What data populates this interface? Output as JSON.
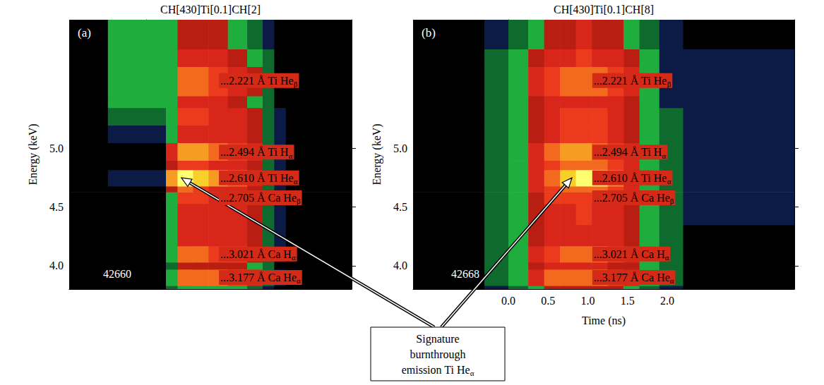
{
  "chart_data": [
    {
      "type": "heatmap",
      "title": "CH[430]Ti[0.1]CH[2]",
      "panel_label": "(a)",
      "shot": "42660",
      "y_label": "Energy (keV)",
      "xlim": [
        -1.0,
        2.65
      ],
      "xticks": [
        0,
        0.5,
        1,
        1.5,
        2
      ],
      "ylim": [
        3.8,
        6.1
      ],
      "yticks": [
        {
          "value": 4,
          "label": "4.0"
        },
        4.5,
        {
          "value": 5,
          "label": "5.0"
        }
      ],
      "tick_labels": "y",
      "x_bins": [
        -1.0,
        -0.5,
        0.25,
        0.4,
        0.6,
        0.8,
        1.05,
        1.3,
        1.5,
        1.65,
        1.8,
        2.65
      ],
      "y_bins": [
        3.8,
        3.83,
        3.97,
        4.03,
        4.17,
        4.35,
        4.53,
        4.63,
        4.68,
        4.82,
        4.9,
        5.05,
        5.2,
        5.35,
        5.45,
        5.7,
        5.85,
        6.1
      ],
      "cells": [
        [
          0,
          0,
          2,
          3,
          3,
          3,
          3,
          2,
          1,
          0,
          0
        ],
        [
          0,
          0,
          3,
          7,
          7,
          7,
          6,
          5,
          2,
          1,
          0
        ],
        [
          0,
          0,
          2,
          4,
          4,
          4,
          4,
          3,
          2,
          0,
          0
        ],
        [
          0,
          0,
          3,
          7,
          7,
          6,
          6,
          4,
          2,
          1,
          0
        ],
        [
          0,
          0,
          3,
          5,
          5,
          5,
          5,
          4,
          2,
          1,
          0
        ],
        [
          0,
          0,
          3,
          5,
          5,
          5,
          5,
          4,
          2,
          1,
          0
        ],
        [
          0,
          0,
          3,
          6,
          6,
          5,
          5,
          4,
          2,
          1,
          0
        ],
        [
          0,
          0,
          4,
          7,
          6,
          5,
          5,
          4,
          2,
          1,
          0
        ],
        [
          0,
          1,
          8,
          10,
          9,
          8,
          7,
          5,
          2,
          1,
          0
        ],
        [
          0,
          0,
          4,
          6,
          6,
          5,
          5,
          4,
          2,
          1,
          0
        ],
        [
          0,
          0,
          5,
          8,
          8,
          7,
          6,
          5,
          2,
          1,
          0
        ],
        [
          0,
          1,
          3,
          5,
          5,
          5,
          5,
          4,
          2,
          1,
          0
        ],
        [
          0,
          2,
          3,
          6,
          6,
          5,
          5,
          4,
          2,
          1,
          0
        ],
        [
          0,
          3,
          3,
          5,
          5,
          5,
          4,
          3,
          2,
          0,
          0
        ],
        [
          0,
          3,
          3,
          7,
          7,
          6,
          5,
          4,
          2,
          0,
          0
        ],
        [
          0,
          3,
          3,
          5,
          5,
          5,
          4,
          3,
          2,
          0,
          0
        ],
        [
          0,
          3,
          3,
          4,
          4,
          4,
          3,
          2,
          1,
          0,
          0
        ]
      ],
      "lines": [
        {
          "label": "...2.221 Å Ti Heβ",
          "y": 5.58
        },
        {
          "label": "...2.494 Å Ti Hα",
          "y": 4.97
        },
        {
          "label": "...2.610 Å Ti Heα",
          "y": 4.75
        },
        {
          "label": "...2.705 Å Ca Heβ",
          "y": 4.58
        },
        {
          "label": "...3.021 Å Ca Hα",
          "y": 4.1
        },
        {
          "label": "...3.177 Å Ca Heα",
          "y": 3.9
        }
      ]
    },
    {
      "type": "heatmap",
      "title": "CH[430]Ti[0.1]CH[8]",
      "panel_label": "(b)",
      "shot": "42668",
      "y_label": "Energy (keV)",
      "x_label": "Time (ns)",
      "xlim": [
        -1.2,
        3.6
      ],
      "xticks": [
        {
          "value": 0,
          "label": "0.0"
        },
        0.5,
        {
          "value": 1,
          "label": "1.0"
        },
        1.5,
        {
          "value": 2,
          "label": "2.0"
        }
      ],
      "ylim": [
        3.8,
        6.1
      ],
      "yticks": [
        {
          "value": 4,
          "label": "4.0"
        },
        4.5,
        {
          "value": 5,
          "label": "5.0"
        }
      ],
      "x_bins": [
        -1.2,
        -0.3,
        0.0,
        0.25,
        0.45,
        0.65,
        0.85,
        1.05,
        1.25,
        1.45,
        1.65,
        1.9,
        2.2,
        3.6
      ],
      "y_bins": [
        3.8,
        3.83,
        3.97,
        4.03,
        4.17,
        4.35,
        4.53,
        4.63,
        4.68,
        4.82,
        4.9,
        5.05,
        5.2,
        5.35,
        5.45,
        5.7,
        5.85,
        6.1
      ],
      "cells": [
        [
          0,
          1,
          2,
          3,
          4,
          4,
          4,
          4,
          4,
          3,
          2,
          1,
          0
        ],
        [
          0,
          2,
          3,
          5,
          7,
          7,
          7,
          7,
          6,
          5,
          3,
          2,
          0
        ],
        [
          0,
          2,
          3,
          4,
          5,
          5,
          5,
          5,
          4,
          4,
          3,
          2,
          0
        ],
        [
          0,
          2,
          3,
          5,
          6,
          7,
          7,
          7,
          6,
          5,
          3,
          2,
          0
        ],
        [
          0,
          2,
          3,
          4,
          5,
          5,
          5,
          5,
          5,
          4,
          3,
          2,
          0
        ],
        [
          0,
          2,
          3,
          4,
          5,
          5,
          6,
          5,
          5,
          4,
          3,
          2,
          1
        ],
        [
          0,
          2,
          3,
          4,
          6,
          6,
          6,
          6,
          5,
          4,
          3,
          2,
          1
        ],
        [
          0,
          2,
          3,
          5,
          6,
          7,
          7,
          7,
          6,
          5,
          3,
          2,
          1
        ],
        [
          0,
          2,
          3,
          5,
          7,
          9,
          10,
          10,
          8,
          5,
          3,
          2,
          1
        ],
        [
          0,
          2,
          3,
          5,
          6,
          7,
          7,
          7,
          6,
          5,
          3,
          2,
          1
        ],
        [
          0,
          2,
          3,
          5,
          7,
          8,
          8,
          7,
          6,
          5,
          3,
          2,
          1
        ],
        [
          0,
          2,
          3,
          4,
          5,
          6,
          6,
          6,
          5,
          4,
          3,
          2,
          1
        ],
        [
          0,
          2,
          3,
          4,
          5,
          6,
          6,
          6,
          5,
          4,
          3,
          2,
          1
        ],
        [
          0,
          2,
          3,
          4,
          5,
          5,
          5,
          5,
          5,
          4,
          3,
          1,
          1
        ],
        [
          0,
          2,
          3,
          5,
          6,
          7,
          7,
          7,
          6,
          5,
          3,
          1,
          1
        ],
        [
          0,
          2,
          3,
          4,
          5,
          5,
          6,
          5,
          5,
          4,
          3,
          1,
          1
        ],
        [
          0,
          1,
          2,
          3,
          4,
          4,
          5,
          4,
          4,
          3,
          2,
          1,
          0
        ]
      ],
      "lines": [
        {
          "label": "...2.221 Å Ti Heβ",
          "y": 5.58
        },
        {
          "label": "...2.494 Å Ti Hα",
          "y": 4.97
        },
        {
          "label": "...2.610 Å Ti Heα",
          "y": 4.75
        },
        {
          "label": "...2.705 Å Ca Heβ",
          "y": 4.58
        },
        {
          "label": "...3.021 Å Ca Hα",
          "y": 4.1
        },
        {
          "label": "...3.177 Å Ca Heα",
          "y": 3.9
        }
      ]
    }
  ],
  "annotation": {
    "text": "Signature burnthrough emission Ti Heα",
    "points": [
      {
        "panel": 0,
        "x": 0.45,
        "y": 4.75
      },
      {
        "panel": 1,
        "x": 0.8,
        "y": 4.75
      }
    ]
  }
}
